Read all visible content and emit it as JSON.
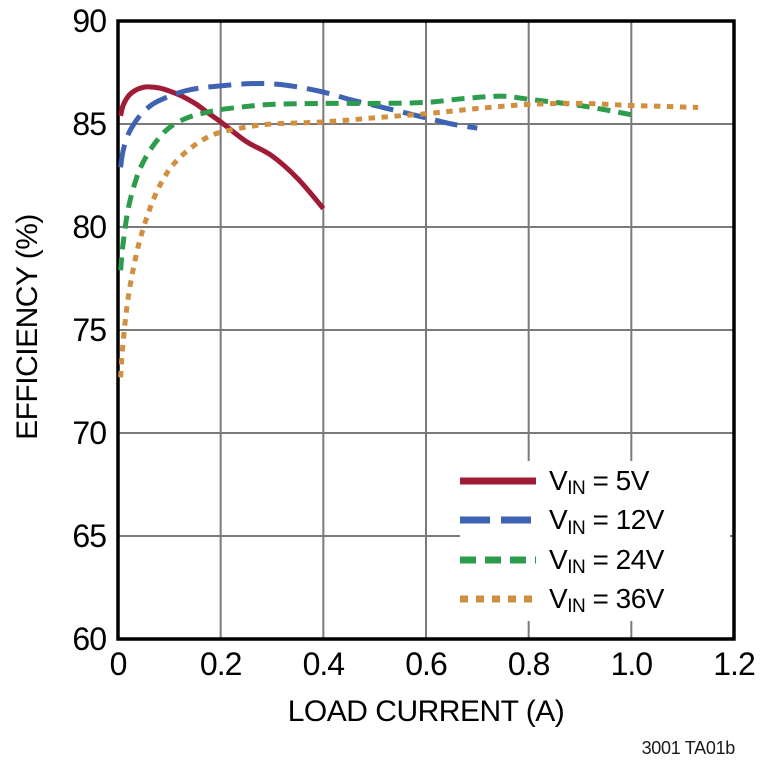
{
  "figure": {
    "caption": "3001 TA01b"
  },
  "chart_data": {
    "type": "line",
    "title": "",
    "xlabel": "LOAD CURRENT (A)",
    "ylabel": "EFFICIENCY (%)",
    "xlim": [
      0,
      1.2
    ],
    "ylim": [
      60,
      90
    ],
    "grid": true,
    "grid_color": "#7a7a7a",
    "frame_color": "#000000",
    "legend_position": "bottom-right",
    "x_ticks": [
      0,
      0.2,
      0.4,
      0.6,
      0.8,
      1.0,
      1.2
    ],
    "x_tick_labels": [
      "0",
      "0.2",
      "0.4",
      "0.6",
      "0.8",
      "1.0",
      "1.2"
    ],
    "y_ticks": [
      60,
      65,
      70,
      75,
      80,
      85,
      90
    ],
    "y_tick_labels": [
      "60",
      "65",
      "70",
      "75",
      "80",
      "85",
      "90"
    ],
    "series": [
      {
        "name": "VIN = 5V",
        "legend_prefix": "V",
        "legend_sub": "IN",
        "legend_suffix": " = 5V",
        "color": "#A01B35",
        "dash": "none",
        "legend_dash": "none",
        "points": [
          [
            0.005,
            85.4
          ],
          [
            0.01,
            85.9
          ],
          [
            0.02,
            86.35
          ],
          [
            0.035,
            86.65
          ],
          [
            0.055,
            86.8
          ],
          [
            0.08,
            86.75
          ],
          [
            0.1,
            86.6
          ],
          [
            0.125,
            86.35
          ],
          [
            0.15,
            86.0
          ],
          [
            0.175,
            85.55
          ],
          [
            0.2,
            85.1
          ],
          [
            0.25,
            84.15
          ],
          [
            0.3,
            83.45
          ],
          [
            0.35,
            82.35
          ],
          [
            0.4,
            80.9
          ]
        ]
      },
      {
        "name": "VIN = 12V",
        "legend_prefix": "V",
        "legend_sub": "IN",
        "legend_suffix": " = 12V",
        "color": "#3F63B3",
        "dash": "23 10",
        "legend_dash": "30 11",
        "points": [
          [
            0.005,
            82.9
          ],
          [
            0.01,
            83.7
          ],
          [
            0.02,
            84.5
          ],
          [
            0.035,
            85.15
          ],
          [
            0.05,
            85.6
          ],
          [
            0.07,
            86.0
          ],
          [
            0.1,
            86.35
          ],
          [
            0.13,
            86.6
          ],
          [
            0.16,
            86.75
          ],
          [
            0.2,
            86.85
          ],
          [
            0.25,
            86.95
          ],
          [
            0.3,
            86.95
          ],
          [
            0.35,
            86.8
          ],
          [
            0.4,
            86.55
          ],
          [
            0.45,
            86.2
          ],
          [
            0.5,
            85.9
          ],
          [
            0.55,
            85.6
          ],
          [
            0.6,
            85.3
          ],
          [
            0.65,
            85.0
          ],
          [
            0.7,
            84.8
          ]
        ]
      },
      {
        "name": "VIN = 24V",
        "legend_prefix": "V",
        "legend_sub": "IN",
        "legend_suffix": " = 24V",
        "color": "#2E9C4D",
        "dash": "13 8",
        "legend_dash": "16 9",
        "points": [
          [
            0.005,
            77.9
          ],
          [
            0.01,
            79.2
          ],
          [
            0.02,
            80.9
          ],
          [
            0.035,
            82.3
          ],
          [
            0.05,
            83.2
          ],
          [
            0.07,
            84.0
          ],
          [
            0.09,
            84.6
          ],
          [
            0.11,
            85.0
          ],
          [
            0.14,
            85.35
          ],
          [
            0.17,
            85.55
          ],
          [
            0.2,
            85.7
          ],
          [
            0.25,
            85.85
          ],
          [
            0.3,
            85.95
          ],
          [
            0.4,
            86.0
          ],
          [
            0.5,
            86.0
          ],
          [
            0.6,
            86.05
          ],
          [
            0.68,
            86.25
          ],
          [
            0.75,
            86.35
          ],
          [
            0.8,
            86.2
          ],
          [
            0.9,
            85.9
          ],
          [
            1.0,
            85.45
          ]
        ]
      },
      {
        "name": "VIN = 36V",
        "legend_prefix": "V",
        "legend_sub": "IN",
        "legend_suffix": " = 36V",
        "color": "#D0903F",
        "dash": "6.5 6.5",
        "legend_dash": "8 8",
        "points": [
          [
            0.005,
            72.7
          ],
          [
            0.01,
            74.4
          ],
          [
            0.02,
            76.6
          ],
          [
            0.035,
            78.6
          ],
          [
            0.05,
            80.0
          ],
          [
            0.07,
            81.4
          ],
          [
            0.09,
            82.4
          ],
          [
            0.11,
            83.1
          ],
          [
            0.14,
            83.8
          ],
          [
            0.17,
            84.3
          ],
          [
            0.2,
            84.6
          ],
          [
            0.25,
            84.85
          ],
          [
            0.3,
            85.0
          ],
          [
            0.4,
            85.1
          ],
          [
            0.5,
            85.3
          ],
          [
            0.6,
            85.5
          ],
          [
            0.7,
            85.75
          ],
          [
            0.8,
            85.95
          ],
          [
            0.9,
            86.0
          ],
          [
            1.0,
            85.9
          ],
          [
            1.07,
            85.85
          ],
          [
            1.13,
            85.8
          ]
        ]
      }
    ]
  }
}
